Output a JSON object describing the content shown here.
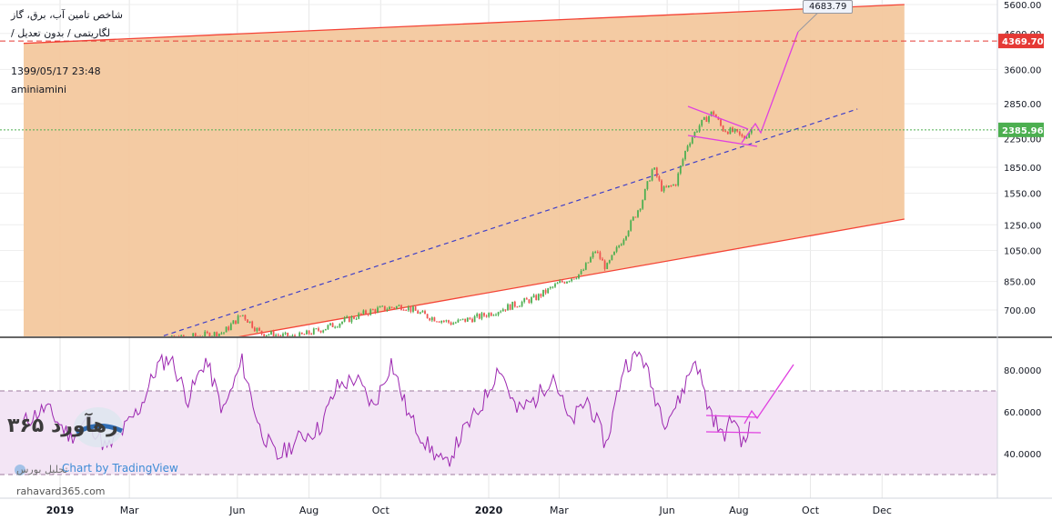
{
  "chart_data": [
    {
      "type": "candlestick",
      "title": "شاخص تامین آب، برق، گاز",
      "subtitle": "لگاریتمی / بدون تعدیل /",
      "timestamp": "1399/05/17 23:48",
      "author": "aminiamini",
      "scale": "log",
      "y_ticks": [
        700,
        850,
        1050,
        1250,
        1550,
        1850,
        2250,
        2850,
        3600,
        4600,
        5600
      ],
      "y_tick_labels": [
        "700.00",
        "850.00",
        "1050.00",
        "1250.00",
        "1550.00",
        "1850.00",
        "2250.00",
        "2850.00",
        "3600.00",
        "4600.00",
        "5600.00"
      ],
      "ylim": [
        600,
        5700
      ],
      "x_ticks": [
        "2019",
        "Mar",
        "Jun",
        "Aug",
        "Oct",
        "2020",
        "Mar",
        "Jun",
        "Aug",
        "Oct",
        "Dec"
      ],
      "price_path": [
        [
          "2019-03-15",
          560
        ],
        [
          "2019-05-20",
          600
        ],
        [
          "2019-06-05",
          680
        ],
        [
          "2019-06-20",
          600
        ],
        [
          "2019-07-20",
          580
        ],
        [
          "2019-08-15",
          620
        ],
        [
          "2019-09-05",
          660
        ],
        [
          "2019-09-25",
          700
        ],
        [
          "2019-10-20",
          720
        ],
        [
          "2019-11-10",
          670
        ],
        [
          "2019-12-01",
          640
        ],
        [
          "2019-12-25",
          670
        ],
        [
          "2020-01-20",
          720
        ],
        [
          "2020-02-10",
          760
        ],
        [
          "2020-03-01",
          840
        ],
        [
          "2020-03-20",
          900
        ],
        [
          "2020-04-01",
          1050
        ],
        [
          "2020-04-10",
          930
        ],
        [
          "2020-04-25",
          1150
        ],
        [
          "2020-05-10",
          1450
        ],
        [
          "2020-05-20",
          1850
        ],
        [
          "2020-05-28",
          1580
        ],
        [
          "2020-06-08",
          1650
        ],
        [
          "2020-06-18",
          2150
        ],
        [
          "2020-06-28",
          2450
        ],
        [
          "2020-07-10",
          2700
        ],
        [
          "2020-07-18",
          2400
        ],
        [
          "2020-07-28",
          2350
        ],
        [
          "2020-08-05",
          2250
        ],
        [
          "2020-08-12",
          2400
        ]
      ],
      "price_lines": [
        {
          "label": "4369.70",
          "value": 4369.7,
          "color": "#e53935"
        },
        {
          "label": "2385.96",
          "value": 2385.96,
          "color": "#4caf50"
        }
      ],
      "projection_target": {
        "label": "4683.79",
        "value": 4683.79
      },
      "channel": {
        "upper": [
          [
            "2018-12-01",
            4300
          ],
          [
            "2020-12-20",
            5600
          ]
        ],
        "lower": [
          [
            "2018-12-01",
            450
          ],
          [
            "2020-12-20",
            1300
          ]
        ],
        "mid": [
          [
            "2018-12-01",
            430
          ],
          [
            "2020-11-10",
            2750
          ]
        ],
        "fill": "#f3c89e",
        "line_color": "#f44336",
        "mid_color": "#3f3fc8"
      },
      "colors": {
        "up": "#4caf50",
        "down": "#ef5350",
        "drawing": "#e040e0"
      }
    },
    {
      "type": "line",
      "y_ticks": [
        40,
        60,
        80
      ],
      "y_tick_labels": [
        "40.0000",
        "60.0000",
        "80.0000"
      ],
      "band": [
        30,
        70
      ],
      "ylim": [
        20,
        100
      ],
      "series": [
        {
          "color": "#9c27b0",
          "values": [
            [
              "2018-12-01",
              55
            ],
            [
              "2018-12-20",
              62
            ],
            [
              "2019-01-10",
              48
            ],
            [
              "2019-01-25",
              56
            ],
            [
              "2019-02-10",
              42
            ],
            [
              "2019-02-25",
              52
            ],
            [
              "2019-03-10",
              62
            ],
            [
              "2019-03-25",
              82
            ],
            [
              "2019-04-05",
              86
            ],
            [
              "2019-04-20",
              66
            ],
            [
              "2019-05-05",
              85
            ],
            [
              "2019-05-20",
              60
            ],
            [
              "2019-06-05",
              84
            ],
            [
              "2019-06-20",
              52
            ],
            [
              "2019-07-05",
              38
            ],
            [
              "2019-07-25",
              48
            ],
            [
              "2019-08-10",
              52
            ],
            [
              "2019-08-25",
              72
            ],
            [
              "2019-09-10",
              76
            ],
            [
              "2019-09-25",
              62
            ],
            [
              "2019-10-10",
              84
            ],
            [
              "2019-10-25",
              58
            ],
            [
              "2019-11-10",
              44
            ],
            [
              "2019-11-25",
              34
            ],
            [
              "2019-12-10",
              50
            ],
            [
              "2019-12-25",
              62
            ],
            [
              "2020-01-10",
              82
            ],
            [
              "2020-01-25",
              60
            ],
            [
              "2020-02-10",
              66
            ],
            [
              "2020-02-25",
              78
            ],
            [
              "2020-03-10",
              54
            ],
            [
              "2020-03-25",
              66
            ],
            [
              "2020-04-10",
              44
            ],
            [
              "2020-04-25",
              82
            ],
            [
              "2020-05-10",
              88
            ],
            [
              "2020-05-20",
              70
            ],
            [
              "2020-05-30",
              56
            ],
            [
              "2020-06-10",
              64
            ],
            [
              "2020-06-25",
              86
            ],
            [
              "2020-07-05",
              64
            ],
            [
              "2020-07-18",
              48
            ],
            [
              "2020-07-28",
              58
            ],
            [
              "2020-08-05",
              44
            ],
            [
              "2020-08-12",
              56
            ]
          ]
        }
      ],
      "drawing_color": "#e040e0"
    }
  ],
  "watermark": {
    "brand": "رهآورد ۳۶۵",
    "sub": "تحلیل بورس",
    "chart_by": "Chart by TradingView",
    "site": "rahavard365.com"
  }
}
